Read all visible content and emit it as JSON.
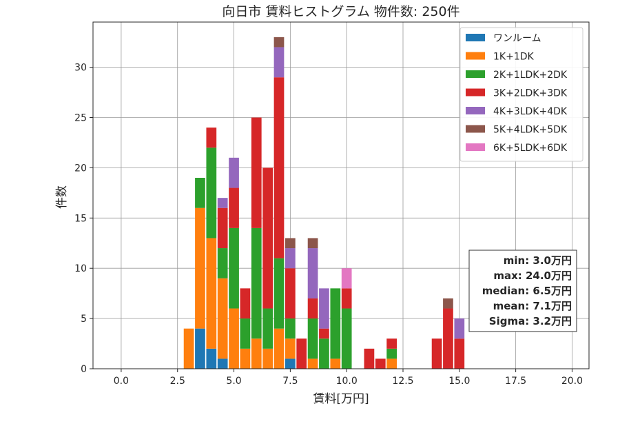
{
  "chart_data": {
    "type": "bar",
    "stacked": true,
    "title": "向日市 賃料ヒストグラム  物件数: 250件",
    "xlabel": "賃料[万円]",
    "ylabel": "件数",
    "xlim": [
      -1.25,
      20.75
    ],
    "ylim": [
      0,
      34.5
    ],
    "xticks": [
      0.0,
      2.5,
      5.0,
      7.5,
      10.0,
      12.5,
      15.0,
      17.5,
      20.0
    ],
    "xtick_labels": [
      "0.0",
      "2.5",
      "5.0",
      "7.5",
      "10.0",
      "12.5",
      "15.0",
      "17.5",
      "20.0"
    ],
    "yticks": [
      0,
      5,
      10,
      15,
      20,
      25,
      30
    ],
    "ytick_labels": [
      "0",
      "5",
      "10",
      "15",
      "20",
      "25",
      "30"
    ],
    "grid": true,
    "legend_position": "top-right",
    "bin_width": 0.5,
    "bins": [
      3.0,
      3.5,
      4.0,
      4.5,
      5.0,
      5.5,
      6.0,
      6.5,
      7.0,
      7.5,
      8.0,
      8.5,
      9.0,
      9.5,
      10.0,
      11.0,
      11.5,
      12.0,
      14.0,
      14.5,
      15.0
    ],
    "series": [
      {
        "name": "ワンルーム",
        "color": "#1f77b4",
        "values": [
          0,
          4,
          2,
          1,
          0,
          0,
          0,
          0,
          0,
          1,
          0,
          0,
          0,
          0,
          0,
          0,
          0,
          0,
          0,
          0,
          0
        ]
      },
      {
        "name": "1K+1DK",
        "color": "#ff7f0e",
        "values": [
          4,
          12,
          11,
          8,
          6,
          2,
          3,
          2,
          4,
          2,
          0,
          1,
          0,
          1,
          0,
          0,
          0,
          1,
          0,
          0,
          0
        ]
      },
      {
        "name": "2K+1LDK+2DK",
        "color": "#2ca02c",
        "values": [
          0,
          3,
          9,
          3,
          8,
          3,
          11,
          4,
          7,
          2,
          0,
          4,
          3,
          7,
          6,
          0,
          0,
          1,
          0,
          0,
          0
        ]
      },
      {
        "name": "3K+2LDK+3DK",
        "color": "#d62728",
        "values": [
          0,
          0,
          2,
          4,
          4,
          3,
          11,
          14,
          18,
          5,
          3,
          2,
          1,
          0,
          2,
          2,
          1,
          1,
          3,
          6,
          3
        ]
      },
      {
        "name": "4K+3LDK+4DK",
        "color": "#9467bd",
        "values": [
          0,
          0,
          0,
          1,
          3,
          0,
          0,
          0,
          3,
          2,
          0,
          5,
          4,
          0,
          0,
          0,
          0,
          0,
          0,
          0,
          2
        ]
      },
      {
        "name": "5K+4LDK+5DK",
        "color": "#8c564b",
        "values": [
          0,
          0,
          0,
          0,
          0,
          0,
          0,
          0,
          1,
          1,
          0,
          1,
          0,
          0,
          0,
          0,
          0,
          0,
          0,
          1,
          0
        ]
      },
      {
        "name": "6K+5LDK+6DK",
        "color": "#e377c2",
        "values": [
          0,
          0,
          0,
          0,
          0,
          0,
          0,
          0,
          0,
          0,
          0,
          0,
          0,
          0,
          2,
          0,
          0,
          0,
          0,
          0,
          0
        ]
      }
    ],
    "stats": {
      "min": "min: 3.0万円",
      "max": "max: 24.0万円",
      "median": "median: 6.5万円",
      "mean": "mean: 7.1万円",
      "sigma": "Sigma: 3.2万円"
    }
  }
}
